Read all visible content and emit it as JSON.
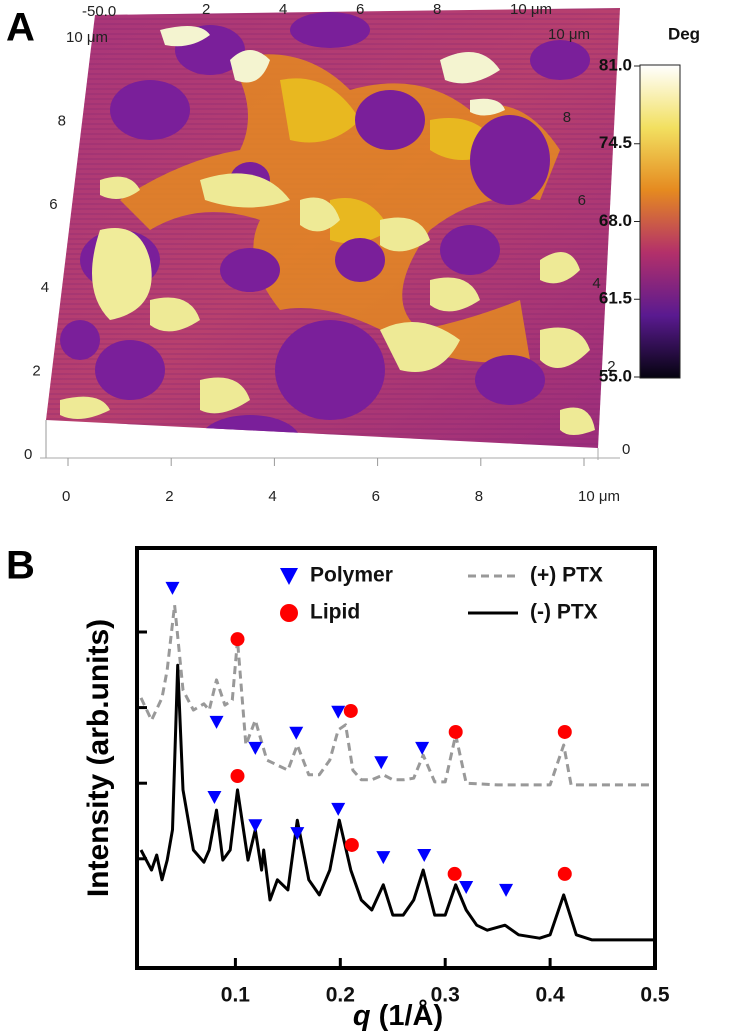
{
  "chart_data": [
    {
      "type": "surface",
      "panel": "A",
      "xlim": [
        0,
        10
      ],
      "ylim": [
        0,
        10
      ],
      "xticks": [
        0,
        2,
        4,
        6,
        8,
        {
          "value": 10,
          "label": "10 μm"
        }
      ],
      "yticks": [
        0,
        2,
        4,
        6,
        8,
        {
          "value": 10,
          "label": "10 μm"
        }
      ],
      "z_label": "-50.0",
      "colorbar": {
        "title": "Deg",
        "clim": [
          55,
          81
        ],
        "ticks": [
          {
            "value": 81,
            "label": "81.0"
          },
          {
            "value": 74.5,
            "label": "74.5"
          },
          {
            "value": 68,
            "label": "68.0"
          },
          {
            "value": 61.5,
            "label": "61.5"
          },
          {
            "value": 55,
            "label": "55.0"
          }
        ]
      }
    },
    {
      "type": "line",
      "panel": "B",
      "xlabel": "q",
      "xlabel_unit": "(1/Å)",
      "ylabel": "Intensity (arb.units)",
      "xlim": [
        0.01,
        0.5
      ],
      "ylim": [
        0,
        10
      ],
      "xticks": [
        0.1,
        0.2,
        0.3,
        0.4,
        0.5
      ],
      "yticks": [
        2.6,
        4.4,
        6.2,
        8
      ],
      "series": [
        {
          "name": "(+) PTX",
          "color": "#999999",
          "style": "dashed",
          "x": [
            0.01,
            0.02,
            0.03,
            0.035,
            0.042,
            0.05,
            0.06,
            0.07,
            0.075,
            0.082,
            0.09,
            0.097,
            0.102,
            0.11,
            0.119,
            0.13,
            0.14,
            0.15,
            0.159,
            0.17,
            0.18,
            0.19,
            0.198,
            0.205,
            0.212,
            0.22,
            0.23,
            0.241,
            0.25,
            0.26,
            0.27,
            0.279,
            0.29,
            0.3,
            0.31,
            0.32,
            0.35,
            0.4,
            0.413,
            0.42,
            0.45,
            0.5
          ],
          "values": [
            6.43,
            5.9,
            6.43,
            7.1,
            8.64,
            6.62,
            6.14,
            6.29,
            6.14,
            6.86,
            6.26,
            6.38,
            7.81,
            5.31,
            5.9,
            4.95,
            4.83,
            4.71,
            5.31,
            4.6,
            4.6,
            4.95,
            5.67,
            5.79,
            4.71,
            4.48,
            4.48,
            4.6,
            4.48,
            4.48,
            4.52,
            5.07,
            4.43,
            4.43,
            5.55,
            4.4,
            4.36,
            4.36,
            5.31,
            4.36,
            4.36,
            4.36
          ]
        },
        {
          "name": "(-) PTX",
          "color": "#000000",
          "style": "solid",
          "x": [
            0.01,
            0.02,
            0.025,
            0.03,
            0.035,
            0.04,
            0.045,
            0.05,
            0.06,
            0.07,
            0.075,
            0.082,
            0.088,
            0.095,
            0.102,
            0.112,
            0.119,
            0.125,
            0.127,
            0.133,
            0.14,
            0.15,
            0.159,
            0.17,
            0.18,
            0.19,
            0.199,
            0.21,
            0.22,
            0.23,
            0.241,
            0.25,
            0.26,
            0.27,
            0.279,
            0.29,
            0.3,
            0.31,
            0.32,
            0.33,
            0.34,
            0.357,
            0.37,
            0.39,
            0.4,
            0.413,
            0.425,
            0.44,
            0.5
          ],
          "values": [
            2.81,
            2.33,
            2.69,
            2.1,
            2.57,
            3.29,
            7.21,
            4.24,
            2.81,
            2.52,
            2.81,
            3.76,
            2.57,
            2.81,
            4.24,
            2.57,
            3.29,
            2.33,
            2.81,
            1.62,
            2.1,
            1.86,
            3.52,
            2.1,
            1.74,
            2.33,
            3.52,
            2.33,
            1.62,
            1.38,
            1.98,
            1.26,
            1.26,
            1.62,
            2.33,
            1.26,
            1.26,
            1.98,
            1.38,
            1.02,
            0.9,
            1.02,
            0.79,
            0.71,
            0.79,
            1.74,
            0.79,
            0.67,
            0.67
          ]
        },
        {
          "name": "Polymer",
          "color": "#0000ff",
          "marker": "triangle",
          "x": [
            0.04,
            0.082,
            0.119,
            0.158,
            0.198,
            0.239,
            0.278,
            0.08,
            0.119,
            0.159,
            0.198,
            0.241,
            0.28,
            0.32,
            0.358
          ],
          "values": [
            9.05,
            5.86,
            5.24,
            5.6,
            6.1,
            4.9,
            5.24,
            4.07,
            3.4,
            3.21,
            3.79,
            2.64,
            2.69,
            1.93,
            1.86
          ]
        },
        {
          "name": "Lipid",
          "color": "#ff0000",
          "marker": "circle",
          "x": [
            0.102,
            0.21,
            0.31,
            0.414,
            0.102,
            0.211,
            0.309,
            0.414
          ],
          "values": [
            7.83,
            6.12,
            5.62,
            5.62,
            4.57,
            2.93,
            2.24,
            2.24
          ]
        }
      ]
    }
  ]
}
